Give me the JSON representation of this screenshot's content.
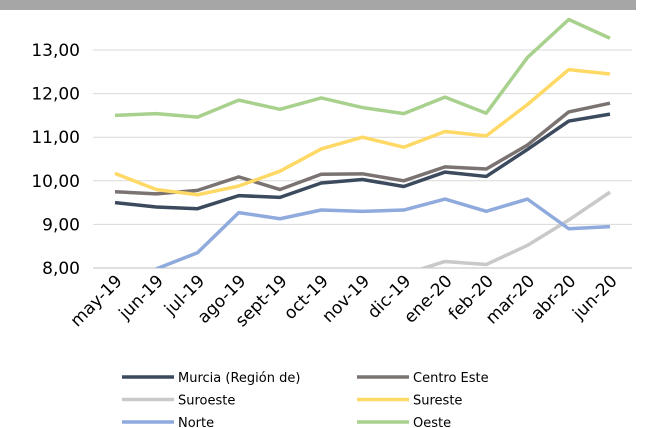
{
  "chart_data": {
    "type": "line",
    "categories": [
      "may-19",
      "jun-19",
      "jul-19",
      "ago-19",
      "sept-19",
      "oct-19",
      "nov-19",
      "dic-19",
      "ene-20",
      "feb-20",
      "mar-20",
      "abr-20",
      "jun-20"
    ],
    "series": [
      {
        "name": "Murcia (Región de)",
        "color": "#3b4a5c",
        "values": [
          9.5,
          9.4,
          9.36,
          9.66,
          9.62,
          9.95,
          10.03,
          9.87,
          10.2,
          10.1,
          10.72,
          11.37,
          11.53
        ]
      },
      {
        "name": "Centro Este",
        "color": "#7a7371",
        "values": [
          9.75,
          9.7,
          9.78,
          10.09,
          9.8,
          10.15,
          10.16,
          10.0,
          10.32,
          10.27,
          10.82,
          11.58,
          11.78
        ]
      },
      {
        "name": "Suroeste",
        "color": "#c9c9c9",
        "values": [
          null,
          null,
          null,
          null,
          null,
          null,
          7.98,
          7.85,
          8.15,
          8.08,
          8.52,
          9.1,
          9.74
        ]
      },
      {
        "name": "Sureste",
        "color": "#ffd966",
        "values": [
          10.17,
          9.8,
          9.68,
          9.88,
          10.22,
          10.73,
          11.0,
          10.77,
          11.13,
          11.03,
          11.75,
          12.55,
          12.45
        ]
      },
      {
        "name": "Norte",
        "color": "#8faadc",
        "values": [
          null,
          7.98,
          8.35,
          9.27,
          9.13,
          9.33,
          9.3,
          9.33,
          9.58,
          9.3,
          9.58,
          8.9,
          8.95
        ]
      },
      {
        "name": "Oeste",
        "color": "#a9d18e",
        "values": [
          11.5,
          11.54,
          11.46,
          11.85,
          11.64,
          11.9,
          11.68,
          11.54,
          11.92,
          11.55,
          12.83,
          13.7,
          13.27
        ]
      }
    ],
    "ylim": [
      8,
      14
    ],
    "yticks": [
      {
        "value": 8,
        "label": "8,00"
      },
      {
        "value": 9,
        "label": "9,00"
      },
      {
        "value": 10,
        "label": "10,00"
      },
      {
        "value": 11,
        "label": "11,00"
      },
      {
        "value": 12,
        "label": "12,00"
      },
      {
        "value": 13,
        "label": "13,00"
      }
    ],
    "grid": true
  }
}
